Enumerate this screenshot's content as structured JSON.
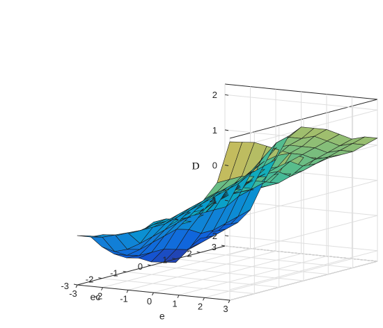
{
  "chart_data": {
    "type": "surface",
    "title": "",
    "xlabel": "e",
    "ylabel": "ec",
    "zlabel": "D",
    "xlim": [
      -3,
      3
    ],
    "ylim": [
      -3,
      3
    ],
    "zlim": [
      -2.3,
      2.3
    ],
    "x_ticks": [
      "-3",
      "-2",
      "-1",
      "0",
      "1",
      "2",
      "3"
    ],
    "y_ticks": [
      "-3",
      "-2",
      "-1",
      "0",
      "1",
      "2",
      "3"
    ],
    "z_ticks": [
      "-2",
      "-1",
      "0",
      "1",
      "2"
    ],
    "grid": true,
    "box": true,
    "colormap": "parula",
    "color_range": [
      -2.5,
      2.5
    ],
    "x": [
      -3,
      -2.5,
      -2,
      -1.5,
      -1,
      -0.5,
      0,
      0.5,
      1,
      1.5,
      2,
      2.5,
      3
    ],
    "y": [
      -3,
      -2.5,
      -2,
      -1.5,
      -1,
      -0.5,
      0,
      0.5,
      1,
      1.5,
      2,
      2.5,
      3
    ],
    "z": [
      [
        -0.9,
        -0.9,
        -0.8,
        -0.8,
        -0.7,
        -0.6,
        -0.3,
        -0.4,
        -0.3,
        0.0,
        0.5,
        1.0,
        2.2
      ],
      [
        -1.0,
        -1.0,
        -0.9,
        -0.8,
        -0.7,
        -0.5,
        -0.3,
        -0.3,
        -0.3,
        0.1,
        0.6,
        1.0,
        2.1
      ],
      [
        -1.4,
        -1.5,
        -1.4,
        -1.2,
        -0.7,
        -0.5,
        -0.4,
        -0.3,
        -0.2,
        0.2,
        0.6,
        1.0,
        2.0
      ],
      [
        -1.7,
        -1.7,
        -1.5,
        -1.1,
        -0.7,
        -0.4,
        -0.3,
        -0.2,
        0.1,
        0.3,
        0.5,
        0.9,
        1.8
      ],
      [
        -1.9,
        -1.8,
        -1.4,
        -1.0,
        -0.6,
        -0.3,
        -0.2,
        0.0,
        0.2,
        0.3,
        0.4,
        0.8,
        1.6
      ],
      [
        -2.0,
        -1.8,
        -1.3,
        -0.9,
        -0.5,
        -0.2,
        -0.1,
        0.1,
        0.3,
        0.3,
        0.4,
        0.8,
        1.4
      ],
      [
        -2.2,
        -1.8,
        -1.2,
        -0.8,
        -0.4,
        -0.1,
        0.0,
        0.2,
        0.4,
        0.4,
        0.4,
        0.7,
        1.2
      ],
      [
        -2.3,
        -1.9,
        -1.3,
        -0.8,
        -0.3,
        0.0,
        0.1,
        0.3,
        0.5,
        0.6,
        0.5,
        0.7,
        1.1
      ],
      [
        -2.4,
        -2.0,
        -1.5,
        -0.8,
        -0.2,
        0.1,
        0.4,
        0.5,
        0.6,
        0.8,
        0.7,
        0.8,
        1.0
      ],
      [
        -2.1,
        -1.9,
        -1.5,
        -0.8,
        -0.1,
        0.3,
        0.6,
        0.8,
        0.9,
        0.9,
        0.8,
        0.9,
        1.0
      ],
      [
        -1.9,
        -1.8,
        -1.4,
        -0.6,
        0.1,
        0.6,
        0.9,
        1.0,
        1.0,
        1.0,
        0.9,
        1.0,
        1.0
      ],
      [
        -1.8,
        -1.7,
        -1.3,
        -0.5,
        0.2,
        0.9,
        1.1,
        1.1,
        1.2,
        1.1,
        1.0,
        1.1,
        1.1
      ],
      [
        -1.7,
        -1.6,
        -1.2,
        -0.4,
        0.3,
        1.0,
        1.3,
        1.3,
        1.3,
        1.2,
        1.1,
        1.2,
        1.2
      ]
    ]
  }
}
